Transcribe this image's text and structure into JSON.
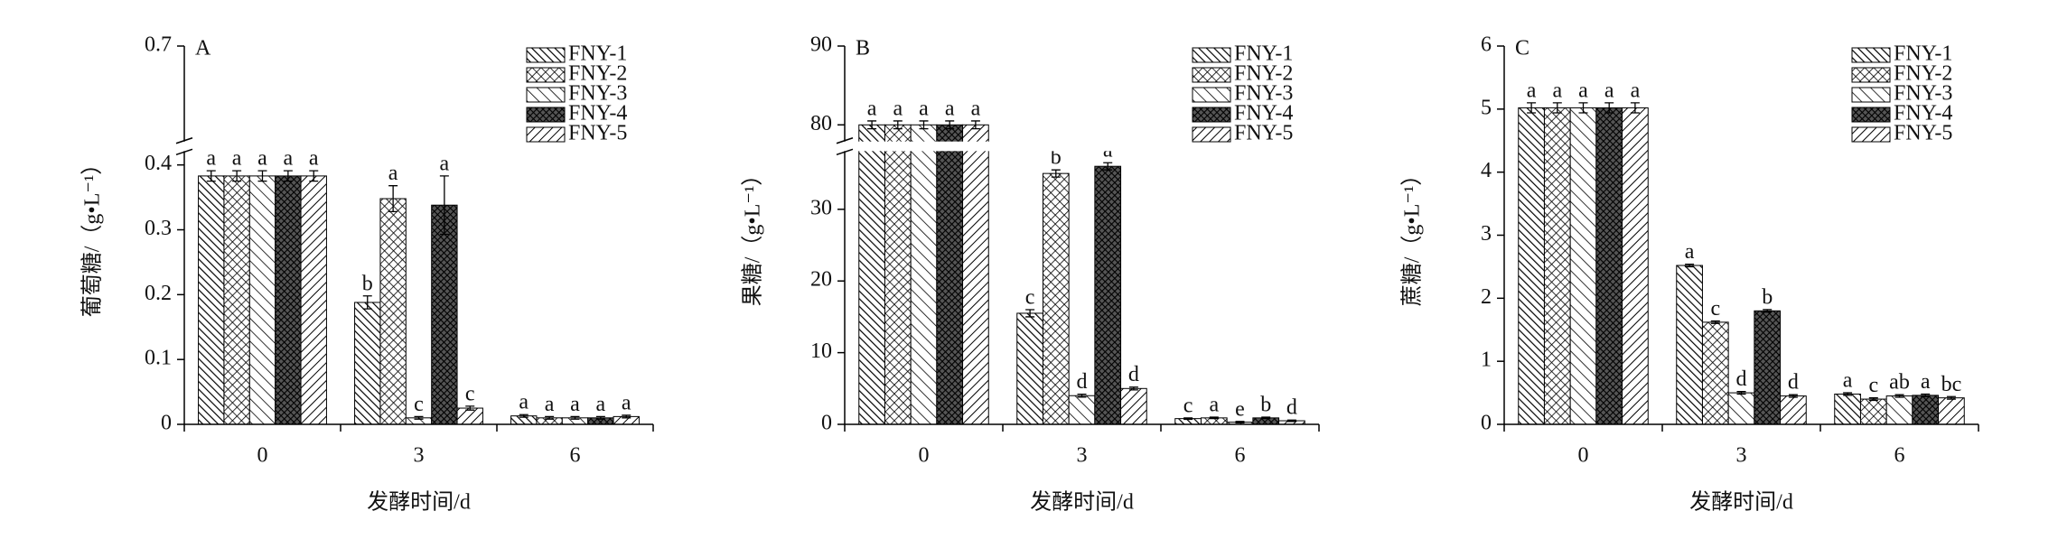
{
  "chart_data": [
    {
      "type": "bar",
      "title": "A",
      "ylabel": "葡萄糖/（g•L⁻¹）",
      "xlabel": "发酵时间/d",
      "categories": [
        "0",
        "3",
        "6"
      ],
      "ylim": [
        0,
        0.7
      ],
      "ybreak": [
        0.42,
        0.68
      ],
      "yticks": [
        0,
        0.1,
        0.2,
        0.3,
        0.4,
        0.7
      ],
      "series": [
        {
          "name": "FNY-1",
          "pattern": "p-diag-dense",
          "values": [
            0.383,
            0.188,
            0.013
          ],
          "errors": [
            0.008,
            0.01,
            0.002
          ],
          "letters": [
            "a",
            "b",
            "a"
          ]
        },
        {
          "name": "FNY-2",
          "pattern": "p-cross",
          "values": [
            0.383,
            0.348,
            0.01
          ],
          "errors": [
            0.008,
            0.02,
            0.002
          ],
          "letters": [
            "a",
            "a",
            "a"
          ]
        },
        {
          "name": "FNY-3",
          "pattern": "p-diag-sparse",
          "values": [
            0.383,
            0.01,
            0.01
          ],
          "errors": [
            0.008,
            0.002,
            0.002
          ],
          "letters": [
            "a",
            "c",
            "a"
          ]
        },
        {
          "name": "FNY-4",
          "pattern": "p-cross-dark",
          "values": [
            0.383,
            0.338,
            0.01
          ],
          "errors": [
            0.008,
            0.045,
            0.002
          ],
          "letters": [
            "a",
            "a",
            "a"
          ]
        },
        {
          "name": "FNY-5",
          "pattern": "p-diag-back",
          "values": [
            0.383,
            0.025,
            0.012
          ],
          "errors": [
            0.008,
            0.003,
            0.002
          ],
          "letters": [
            "a",
            "c",
            "a"
          ]
        }
      ]
    },
    {
      "type": "bar",
      "title": "B",
      "ylabel": "果糖/（g•L⁻¹）",
      "xlabel": "发酵时间/d",
      "categories": [
        "0",
        "3",
        "6"
      ],
      "ylim": [
        0,
        90
      ],
      "ybreak": [
        38,
        78
      ],
      "yticks": [
        0,
        10,
        20,
        30,
        80,
        90
      ],
      "series": [
        {
          "name": "FNY-1",
          "pattern": "p-diag-dense",
          "values": [
            80,
            15.5,
            0.8
          ],
          "errors": [
            0.5,
            0.5,
            0.1
          ],
          "letters": [
            "a",
            "c",
            "c"
          ]
        },
        {
          "name": "FNY-2",
          "pattern": "p-cross",
          "values": [
            80,
            35,
            0.9
          ],
          "errors": [
            0.5,
            0.5,
            0.1
          ],
          "letters": [
            "a",
            "b",
            "a"
          ]
        },
        {
          "name": "FNY-3",
          "pattern": "p-diag-sparse",
          "values": [
            80,
            4,
            0.3
          ],
          "errors": [
            0.5,
            0.2,
            0.1
          ],
          "letters": [
            "a",
            "d",
            "e"
          ]
        },
        {
          "name": "FNY-4",
          "pattern": "p-cross-dark",
          "values": [
            80,
            36,
            0.9
          ],
          "errors": [
            0.5,
            0.5,
            0.1
          ],
          "letters": [
            "a",
            "a",
            "b"
          ]
        },
        {
          "name": "FNY-5",
          "pattern": "p-diag-back",
          "values": [
            80,
            5,
            0.5
          ],
          "errors": [
            0.5,
            0.2,
            0.1
          ],
          "letters": [
            "a",
            "d",
            "d"
          ]
        }
      ]
    },
    {
      "type": "bar",
      "title": "C",
      "ylabel": "蔗糖/（g•L⁻¹）",
      "xlabel": "发酵时间/d",
      "categories": [
        "0",
        "3",
        "6"
      ],
      "ylim": [
        0,
        6
      ],
      "yticks": [
        0,
        1,
        2,
        3,
        4,
        5,
        6
      ],
      "series": [
        {
          "name": "FNY-1",
          "pattern": "p-diag-dense",
          "values": [
            5.02,
            2.52,
            0.48
          ],
          "errors": [
            0.08,
            0.02,
            0.02
          ],
          "letters": [
            "a",
            "a",
            "a"
          ]
        },
        {
          "name": "FNY-2",
          "pattern": "p-cross",
          "values": [
            5.02,
            1.62,
            0.4
          ],
          "errors": [
            0.08,
            0.02,
            0.02
          ],
          "letters": [
            "a",
            "c",
            "c"
          ]
        },
        {
          "name": "FNY-3",
          "pattern": "p-diag-sparse",
          "values": [
            5.02,
            0.5,
            0.45
          ],
          "errors": [
            0.08,
            0.02,
            0.02
          ],
          "letters": [
            "a",
            "d",
            "ab"
          ]
        },
        {
          "name": "FNY-4",
          "pattern": "p-cross-dark",
          "values": [
            5.02,
            1.8,
            0.46
          ],
          "errors": [
            0.08,
            0.02,
            0.02
          ],
          "letters": [
            "a",
            "b",
            "a"
          ]
        },
        {
          "name": "FNY-5",
          "pattern": "p-diag-back",
          "values": [
            5.02,
            0.45,
            0.42
          ],
          "errors": [
            0.08,
            0.02,
            0.02
          ],
          "letters": [
            "a",
            "d",
            "bc"
          ]
        }
      ]
    }
  ]
}
